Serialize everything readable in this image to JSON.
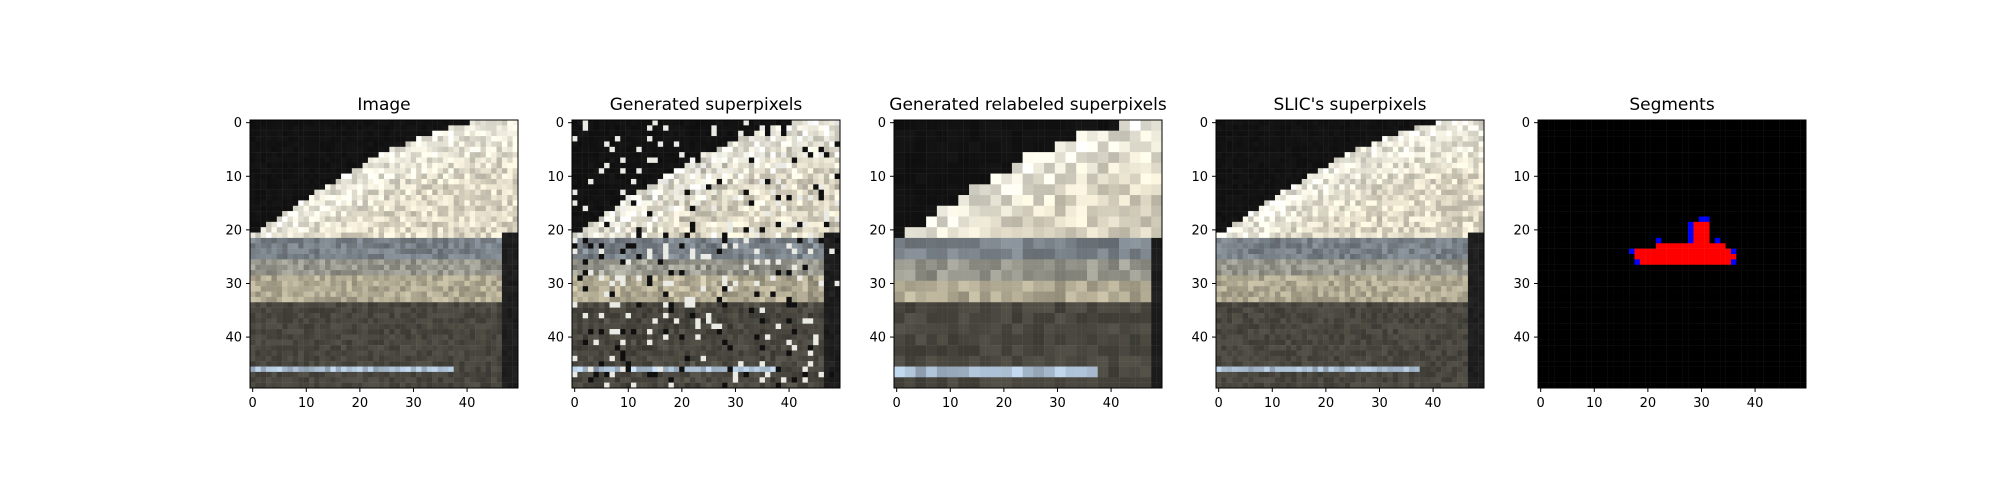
{
  "chart_data": [
    {
      "type": "heatmap",
      "title": "Image",
      "xlim": [
        0,
        50
      ],
      "ylim": [
        50,
        0
      ],
      "xticks": [
        0,
        10,
        20,
        30,
        40
      ],
      "yticks": [
        0,
        10,
        20,
        30,
        40
      ],
      "content": "photo"
    },
    {
      "type": "heatmap",
      "title": "Generated superpixels",
      "xlim": [
        0,
        50
      ],
      "ylim": [
        50,
        0
      ],
      "xticks": [
        0,
        10,
        20,
        30,
        40
      ],
      "yticks": [
        0,
        10,
        20,
        30,
        40
      ],
      "content": "generated"
    },
    {
      "type": "heatmap",
      "title": "Generated relabeled superpixels",
      "xlim": [
        0,
        50
      ],
      "ylim": [
        50,
        0
      ],
      "xticks": [
        0,
        10,
        20,
        30,
        40
      ],
      "yticks": [
        0,
        10,
        20,
        30,
        40
      ],
      "content": "relabeled"
    },
    {
      "type": "heatmap",
      "title": "SLIC's superpixels",
      "xlim": [
        0,
        50
      ],
      "ylim": [
        50,
        0
      ],
      "xticks": [
        0,
        10,
        20,
        30,
        40
      ],
      "yticks": [
        0,
        10,
        20,
        30,
        40
      ],
      "content": "slic"
    },
    {
      "type": "heatmap",
      "title": "Segments",
      "xlim": [
        0,
        50
      ],
      "ylim": [
        50,
        0
      ],
      "xticks": [
        0,
        10,
        20,
        30,
        40
      ],
      "yticks": [
        0,
        10,
        20,
        30,
        40
      ],
      "content": "segments",
      "colors": {
        "background": "#000000",
        "segment": "#ff0000",
        "boundary": "#0000ff"
      }
    }
  ]
}
